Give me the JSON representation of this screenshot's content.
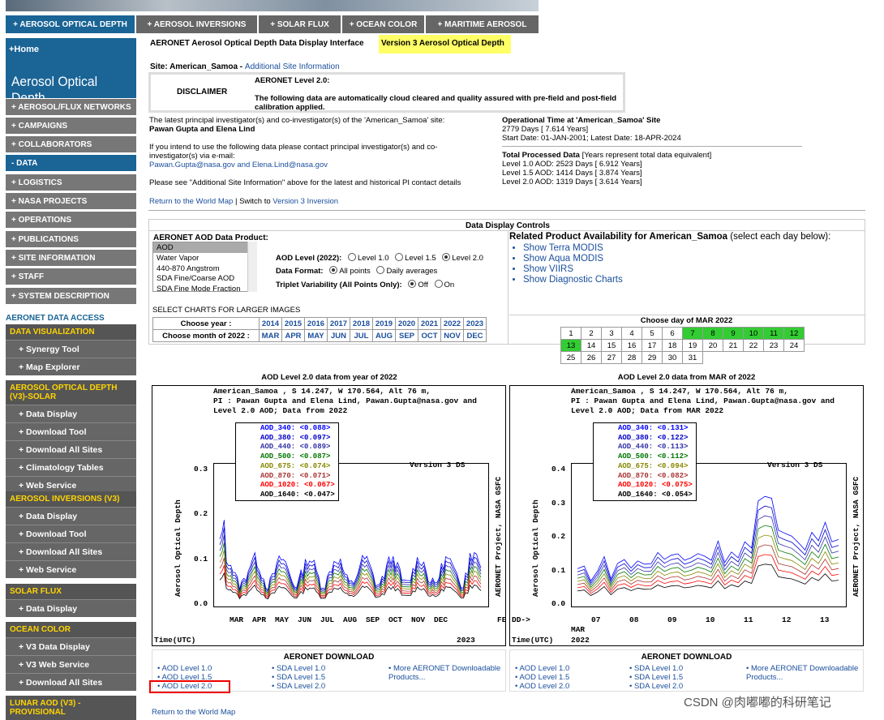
{
  "topnav": [
    "+ AEROSOL OPTICAL DEPTH",
    "+ AEROSOL INVERSIONS",
    "+ SOLAR FLUX",
    "+ OCEAN COLOR",
    "+ MARITIME AEROSOL"
  ],
  "sidebar": {
    "home": "+Home",
    "title": "Aerosol Optical Depth",
    "items": [
      "+ AEROSOL/FLUX NETWORKS",
      "+ CAMPAIGNS",
      "+ COLLABORATORS",
      "- DATA",
      "+ LOGISTICS",
      "+ NASA PROJECTS",
      "+ OPERATIONS",
      "+ PUBLICATIONS",
      "+ SITE INFORMATION",
      "+ STAFF",
      "+ SYSTEM DESCRIPTION"
    ],
    "access": "AERONET DATA ACCESS",
    "sections": [
      {
        "title": "DATA VISUALIZATION",
        "items": [
          "+ Synergy Tool",
          "+ Map Explorer"
        ]
      },
      {
        "title": "AEROSOL OPTICAL DEPTH (V3)-SOLAR",
        "items": [
          "+ Data Display",
          "+ Download Tool",
          "+ Download All Sites",
          "+ Climatology Tables",
          "+ Web Service"
        ]
      },
      {
        "title": "AEROSOL INVERSIONS (V3)",
        "items": [
          "+ Data Display",
          "+ Download Tool",
          "+ Download All Sites",
          "+ Web Service"
        ]
      },
      {
        "title": "SOLAR FLUX",
        "items": [
          "+ Data Display"
        ]
      },
      {
        "title": "OCEAN COLOR",
        "items": [
          "+ V3 Data Display",
          "+ V3 Web Service",
          "+ Download All Sites"
        ]
      },
      {
        "title": "LUNAR AOD (V3) - PROVISIONAL",
        "items": []
      }
    ]
  },
  "main": {
    "header": "AERONET Aerosol Optical Depth Data Display Interface",
    "version": "Version 3 Aerosol Optical Depth",
    "site_label": "Site: American_Samoa",
    "site_link": "Additional Site Information",
    "disclaimer": "DISCLAIMER",
    "level": "AERONET Level 2.0:",
    "level_text": "The following data are automatically cloud cleared and quality assured with pre-field and post-field calibration applied.",
    "pi_intro": "The latest principal investigator(s) and co-investigator(s) of the 'American_Samoa' site:",
    "pi_names": "Pawan Gupta and Elena Lind",
    "contact": "If you intend to use the following data please contact principal investigator(s) and co-investigator(s) via e-mail:",
    "emails": "Pawan.Gupta@nasa.gov and Elena.Lind@nasa.gov",
    "see": "Please see \"Additional Site Information\" above for the latest and historical PI contact details",
    "return_map": "Return to the World Map",
    "switch": "| Switch to",
    "switch_link": "Version 3 Inversion",
    "op_title": "Operational Time at 'American_Samoa' Site",
    "op_days": "2779 Days [ 7.614 Years]",
    "op_dates": "Start Date: 01-JAN-2001; Latest Date: 18-APR-2024",
    "tp_title": "Total Processed Data",
    "tp_note": "[Years represent total data equivalent]",
    "tp_l10": "Level 1.0 AOD: 2523 Days [ 6.912 Years]",
    "tp_l15": "Level 1.5 AOD: 1414 Days [ 3.874 Years]",
    "tp_l20": "Level 2.0 AOD: 1319 Days [ 3.614 Years]"
  },
  "controls": {
    "title": "Data Display Controls",
    "product_label": "AERONET AOD Data Product:",
    "products": [
      "AOD",
      "Water Vapor",
      "440-870 Angstrom",
      "SDA Fine/Coarse AOD",
      "SDA Fine Mode Fraction"
    ],
    "aod_level_label": "AOD Level (2022):",
    "levels": [
      "Level 1.0",
      "Level 1.5",
      "Level 2.0"
    ],
    "format_label": "Data Format:",
    "formats": [
      "All points",
      "Daily averages"
    ],
    "triplet_label": "Triplet Variability (All Points Only):",
    "triplet": [
      "Off",
      "On"
    ],
    "select_charts": "SELECT CHARTS FOR LARGER IMAGES",
    "choose_year": "Choose year :",
    "years": [
      "2014",
      "2015",
      "2016",
      "2017",
      "2018",
      "2019",
      "2020",
      "2021",
      "2022",
      "2023"
    ],
    "choose_month": "Choose month of 2022 :",
    "months": [
      "MAR",
      "APR",
      "MAY",
      "JUN",
      "JUL",
      "AUG",
      "SEP",
      "OCT",
      "NOV",
      "DEC"
    ],
    "related_title": "Related Product Availability for American_Samoa",
    "related_note": "(select each day below):",
    "related": [
      "Show Terra MODIS",
      "Show Aqua MODIS",
      "Show VIIRS",
      "Show Diagnostic Charts"
    ],
    "day_title": "Choose day of MAR 2022",
    "days": [
      [
        1,
        2,
        3,
        4,
        5,
        6,
        7,
        8,
        9,
        10,
        11,
        12
      ],
      [
        13,
        14,
        15,
        16,
        17,
        18,
        19,
        20,
        21,
        22,
        23,
        24
      ],
      [
        25,
        26,
        27,
        28,
        29,
        30,
        31
      ]
    ],
    "green_days": [
      7,
      8,
      9,
      10,
      11,
      12,
      13
    ]
  },
  "plots": [
    {
      "caption": "AOD Level 2.0 data from year of 2022",
      "line1": "American_Samoa , S 14.247, W 170.564, Alt 76 m,",
      "line2": "PI : Pawan Gupta and Elena Lind, Pawan.Gupta@nasa.gov and",
      "line3": "Level 2.0 AOD; Data from 2022",
      "version": "Version 3 DS",
      "right_label": "AERONET Project, NASA GSFC",
      "ylabel": "Aerosol Optical Depth",
      "xlabel": "Time(UTC)",
      "legend": [
        "AOD_340: <0.088>",
        "AOD_380: <0.097>",
        "AOD_440: <0.089>",
        "AOD_500: <0.087>",
        "AOD_675: <0.074>",
        "AOD_870: <0.071>",
        "AOD_1020: <0.067>",
        "AOD_1640: <0.047>"
      ],
      "yticks": [
        "0.3",
        "0.2",
        "0.1",
        "0.0"
      ],
      "xticks": [
        "MAR",
        "APR",
        "MAY",
        "JUN",
        "JUL",
        "AUG",
        "SEP",
        "OCT",
        "NOV",
        "DEC",
        "FEB"
      ],
      "xextra": "2023"
    },
    {
      "caption": "AOD Level 2.0 data from MAR of 2022",
      "line1": "American_Samoa , S 14.247, W 170.564, Alt 76 m,",
      "line2": "PI : Pawan Gupta and Elena Lind, Pawan.Gupta@nasa.gov and",
      "line3": "Level 2.0 AOD; Data from MAR 2022",
      "version": "Version 3 DS",
      "right_label": "AERONET Project, NASA GSFC",
      "ylabel": "Aerosol Optical Depth",
      "xlabel": "Time(UTC)",
      "legend": [
        "AOD_340: <0.131>",
        "AOD_380: <0.122>",
        "AOD_440: <0.113>",
        "AOD_500: <0.112>",
        "AOD_675: <0.094>",
        "AOD_870: <0.082>",
        "AOD_1020: <0.075>",
        "AOD_1640: <0.054>"
      ],
      "yticks": [
        "0.4",
        "0.3",
        "0.2",
        "0.1",
        "0.0"
      ],
      "xticks": [
        "07",
        "08",
        "09",
        "10",
        "11",
        "12",
        "13"
      ],
      "xprefix": "DD->",
      "xextra1": "MAR",
      "xextra2": "2022"
    }
  ],
  "series_colors": [
    "#0000ff",
    "#0000cc",
    "#3333aa",
    "#007700",
    "#888800",
    "#aa3333",
    "#ff0000",
    "#000000"
  ],
  "download": {
    "title": "AERONET DOWNLOAD",
    "aod": [
      "AOD Level 1.0",
      "AOD Level 1.5",
      "AOD Level 2.0"
    ],
    "sda": [
      "SDA Level 1.0",
      "SDA Level 1.5",
      "SDA Level 2.0"
    ],
    "more": "More AERONET Downloadable Products..."
  },
  "footer": {
    "return_map": "Return to the World Map",
    "watermark": "CSDN @肉嘟嘟的科研笔记"
  }
}
